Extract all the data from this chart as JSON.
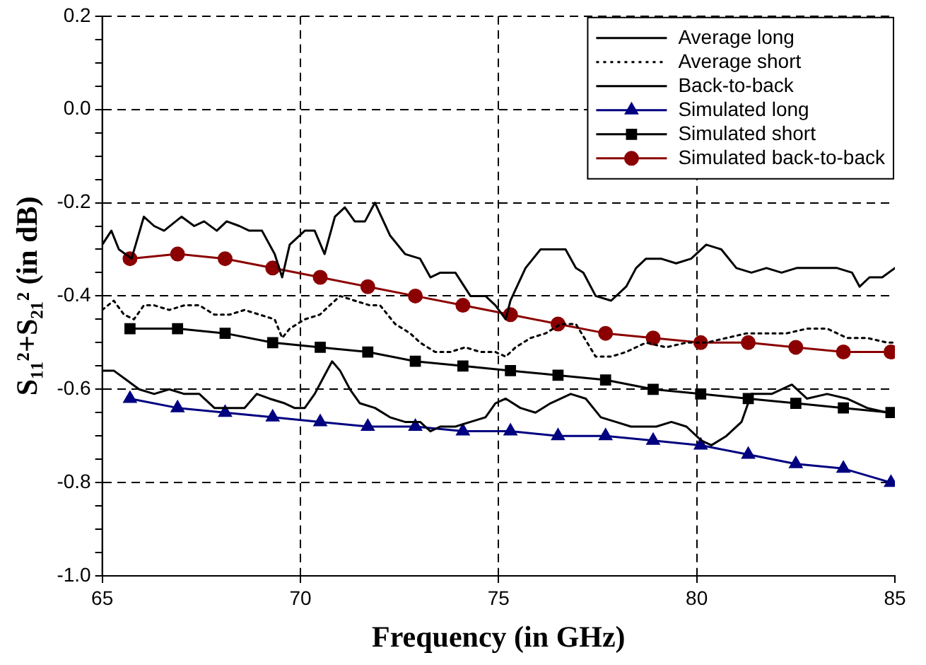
{
  "chart_data": {
    "type": "line",
    "xlabel": "Frequency (in GHz)",
    "ylabel": "S₁₁²+S₂₁² (in dB)",
    "xlim": [
      65,
      85
    ],
    "xticks": [
      65,
      70,
      75,
      80,
      85
    ],
    "ylim": [
      -1.0,
      0.2
    ],
    "yticks": [
      {
        "value": -1.0,
        "label": "-1.0"
      },
      {
        "value": -0.95,
        "label": null
      },
      {
        "value": -0.9,
        "label": null
      },
      {
        "value": -0.85,
        "label": null
      },
      -0.8,
      {
        "value": -0.75,
        "label": null
      },
      {
        "value": -0.7,
        "label": null
      },
      {
        "value": -0.65,
        "label": null
      },
      -0.6,
      {
        "value": -0.55,
        "label": null
      },
      {
        "value": -0.5,
        "label": null
      },
      {
        "value": -0.45,
        "label": null
      },
      -0.4,
      {
        "value": -0.35,
        "label": null
      },
      {
        "value": -0.3,
        "label": null
      },
      {
        "value": -0.25,
        "label": null
      },
      -0.2,
      {
        "value": -0.15,
        "label": null
      },
      {
        "value": -0.1,
        "label": null
      },
      {
        "value": -0.05,
        "label": null
      },
      {
        "value": 0,
        "label": "0.0"
      },
      {
        "value": 0.05,
        "label": null
      },
      {
        "value": 0.1,
        "label": null
      },
      {
        "value": 0.15,
        "label": null
      },
      0.2
    ],
    "grid": true,
    "legend": "top right",
    "series": [
      {
        "name": "Average long",
        "color": "#000000",
        "line_style": "solid",
        "marker": "none",
        "x": [
          65.0,
          65.29,
          65.61,
          65.93,
          66.31,
          66.69,
          67.07,
          67.45,
          67.83,
          68.21,
          68.59,
          68.9,
          69.22,
          69.6,
          69.85,
          70.11,
          70.36,
          70.61,
          70.8,
          71.0,
          71.25,
          71.5,
          71.88,
          72.26,
          72.64,
          73.02,
          73.28,
          73.53,
          73.91,
          74.29,
          74.67,
          74.92,
          75.18,
          75.55,
          75.93,
          76.31,
          76.82,
          77.2,
          77.58,
          77.96,
          78.34,
          78.72,
          78.98,
          79.36,
          79.74,
          80.12,
          80.37,
          80.75,
          81.13,
          81.38,
          81.89,
          82.4,
          82.78,
          83.29,
          83.79,
          84.3,
          84.81,
          85.0
        ],
        "values": [
          -0.56,
          -0.56,
          -0.58,
          -0.6,
          -0.61,
          -0.6,
          -0.61,
          -0.61,
          -0.64,
          -0.64,
          -0.64,
          -0.61,
          -0.62,
          -0.63,
          -0.64,
          -0.64,
          -0.61,
          -0.57,
          -0.54,
          -0.56,
          -0.6,
          -0.63,
          -0.64,
          -0.66,
          -0.67,
          -0.67,
          -0.69,
          -0.68,
          -0.68,
          -0.67,
          -0.66,
          -0.63,
          -0.62,
          -0.64,
          -0.65,
          -0.63,
          -0.61,
          -0.62,
          -0.66,
          -0.67,
          -0.68,
          -0.68,
          -0.68,
          -0.67,
          -0.68,
          -0.71,
          -0.72,
          -0.7,
          -0.67,
          -0.61,
          -0.61,
          -0.59,
          -0.62,
          -0.61,
          -0.62,
          -0.64,
          -0.65,
          -0.65
        ]
      },
      {
        "name": "Average short",
        "color": "#000000",
        "line_style": "dotted",
        "marker": "none",
        "x": [
          65.0,
          65.29,
          65.55,
          65.8,
          66.05,
          66.31,
          66.69,
          67.07,
          67.45,
          67.83,
          68.21,
          68.59,
          68.97,
          69.35,
          69.54,
          69.73,
          70.11,
          70.49,
          70.74,
          71.0,
          71.37,
          71.75,
          72.01,
          72.39,
          72.77,
          73.02,
          73.4,
          73.78,
          74.16,
          74.54,
          74.92,
          75.18,
          75.43,
          75.81,
          76.19,
          76.57,
          76.95,
          77.45,
          77.84,
          78.22,
          78.72,
          79.23,
          79.74,
          80.24,
          80.75,
          81.26,
          81.76,
          82.27,
          82.78,
          83.29,
          83.79,
          84.3,
          84.81,
          85.0
        ],
        "values": [
          -0.43,
          -0.41,
          -0.44,
          -0.45,
          -0.42,
          -0.42,
          -0.43,
          -0.42,
          -0.42,
          -0.44,
          -0.44,
          -0.43,
          -0.44,
          -0.45,
          -0.49,
          -0.47,
          -0.45,
          -0.44,
          -0.42,
          -0.4,
          -0.41,
          -0.42,
          -0.42,
          -0.46,
          -0.48,
          -0.5,
          -0.52,
          -0.52,
          -0.51,
          -0.52,
          -0.52,
          -0.53,
          -0.51,
          -0.49,
          -0.48,
          -0.46,
          -0.46,
          -0.53,
          -0.53,
          -0.52,
          -0.5,
          -0.51,
          -0.5,
          -0.5,
          -0.49,
          -0.48,
          -0.48,
          -0.48,
          -0.47,
          -0.47,
          -0.49,
          -0.49,
          -0.5,
          -0.5
        ]
      },
      {
        "name": "Back-to-back",
        "color": "#000000",
        "line_style": "solid",
        "marker": "none",
        "x": [
          65.0,
          65.23,
          65.42,
          65.74,
          66.05,
          66.31,
          66.56,
          67.0,
          67.32,
          67.57,
          67.89,
          68.14,
          68.46,
          68.71,
          69.03,
          69.35,
          69.54,
          69.73,
          70.11,
          70.36,
          70.61,
          70.87,
          71.12,
          71.37,
          71.63,
          71.88,
          72.26,
          72.64,
          73.02,
          73.28,
          73.53,
          73.91,
          74.29,
          74.67,
          74.92,
          75.18,
          75.3,
          75.68,
          76.06,
          76.31,
          76.69,
          76.95,
          77.14,
          77.45,
          77.84,
          78.22,
          78.47,
          78.72,
          79.1,
          79.48,
          79.86,
          80.24,
          80.62,
          81.0,
          81.38,
          81.76,
          82.14,
          82.52,
          83.03,
          83.54,
          83.92,
          84.11,
          84.36,
          84.68,
          85.0
        ],
        "values": [
          -0.29,
          -0.26,
          -0.3,
          -0.32,
          -0.23,
          -0.25,
          -0.26,
          -0.23,
          -0.25,
          -0.24,
          -0.26,
          -0.24,
          -0.25,
          -0.26,
          -0.26,
          -0.31,
          -0.36,
          -0.29,
          -0.26,
          -0.26,
          -0.31,
          -0.23,
          -0.21,
          -0.24,
          -0.24,
          -0.2,
          -0.27,
          -0.31,
          -0.32,
          -0.36,
          -0.35,
          -0.35,
          -0.4,
          -0.4,
          -0.42,
          -0.45,
          -0.41,
          -0.34,
          -0.3,
          -0.3,
          -0.3,
          -0.34,
          -0.35,
          -0.4,
          -0.41,
          -0.38,
          -0.34,
          -0.32,
          -0.32,
          -0.33,
          -0.32,
          -0.29,
          -0.3,
          -0.34,
          -0.35,
          -0.34,
          -0.35,
          -0.34,
          -0.34,
          -0.34,
          -0.35,
          -0.38,
          -0.36,
          -0.36,
          -0.34
        ]
      },
      {
        "name": "Simulated long",
        "color": "#000080",
        "line_style": "solid",
        "marker": "triangle",
        "x": [
          65.7,
          66.9,
          68.1,
          69.3,
          70.5,
          71.7,
          72.9,
          74.1,
          75.3,
          76.5,
          77.7,
          78.9,
          80.1,
          81.3,
          82.5,
          83.7,
          84.9
        ],
        "values": [
          -0.62,
          -0.64,
          -0.65,
          -0.66,
          -0.67,
          -0.68,
          -0.68,
          -0.69,
          -0.69,
          -0.7,
          -0.7,
          -0.71,
          -0.72,
          -0.74,
          -0.76,
          -0.77,
          -0.8
        ]
      },
      {
        "name": "Simulated short",
        "color": "#000000",
        "line_style": "solid",
        "marker": "square",
        "x": [
          65.7,
          66.9,
          68.1,
          69.3,
          70.5,
          71.7,
          72.9,
          74.1,
          75.3,
          76.5,
          77.7,
          78.9,
          80.1,
          81.3,
          82.5,
          83.7,
          84.9
        ],
        "values": [
          -0.47,
          -0.47,
          -0.48,
          -0.5,
          -0.51,
          -0.52,
          -0.54,
          -0.55,
          -0.56,
          -0.57,
          -0.58,
          -0.6,
          -0.61,
          -0.62,
          -0.63,
          -0.64,
          -0.65
        ]
      },
      {
        "name": "Simulated back-to-back",
        "color": "#8b0000",
        "line_style": "solid",
        "marker": "circle",
        "x": [
          65.7,
          66.9,
          68.1,
          69.3,
          70.5,
          71.7,
          72.9,
          74.1,
          75.3,
          76.5,
          77.7,
          78.9,
          80.1,
          81.3,
          82.5,
          83.7,
          84.9
        ],
        "values": [
          -0.32,
          -0.31,
          -0.32,
          -0.34,
          -0.36,
          -0.38,
          -0.4,
          -0.42,
          -0.44,
          -0.46,
          -0.48,
          -0.49,
          -0.5,
          -0.5,
          -0.51,
          -0.52,
          -0.52
        ]
      }
    ]
  }
}
